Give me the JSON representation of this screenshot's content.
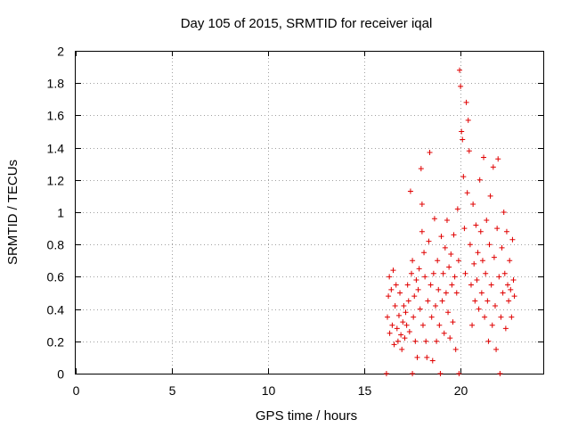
{
  "chart_data": {
    "type": "scatter",
    "title": "Day 105 of 2015, SRMTID for receiver iqal",
    "xlabel": "GPS time / hours",
    "ylabel": "SRMTID / TECUs",
    "xlim": [
      0,
      24.3
    ],
    "ylim": [
      0,
      2
    ],
    "xticks": [
      "0",
      "5",
      "10",
      "15",
      "20"
    ],
    "yticks": [
      "0",
      "0.2",
      "0.4",
      "0.6",
      "0.8",
      "1",
      "1.2",
      "1.4",
      "1.6",
      "1.8",
      "2"
    ],
    "grid": true,
    "marker": "plus",
    "color": "#e00000",
    "series": [
      {
        "name": "SRMTID",
        "points": [
          [
            16.15,
            0.0
          ],
          [
            16.2,
            0.35
          ],
          [
            16.25,
            0.48
          ],
          [
            16.3,
            0.6
          ],
          [
            16.32,
            0.25
          ],
          [
            16.4,
            0.52
          ],
          [
            16.45,
            0.3
          ],
          [
            16.5,
            0.64
          ],
          [
            16.55,
            0.18
          ],
          [
            16.6,
            0.42
          ],
          [
            16.65,
            0.55
          ],
          [
            16.7,
            0.28
          ],
          [
            16.75,
            0.2
          ],
          [
            16.8,
            0.36
          ],
          [
            16.85,
            0.5
          ],
          [
            16.9,
            0.24
          ],
          [
            16.95,
            0.15
          ],
          [
            17.0,
            0.32
          ],
          [
            17.05,
            0.42
          ],
          [
            17.1,
            0.22
          ],
          [
            17.15,
            0.38
          ],
          [
            17.2,
            0.3
          ],
          [
            17.25,
            0.55
          ],
          [
            17.3,
            0.45
          ],
          [
            17.35,
            0.26
          ],
          [
            17.4,
            1.13
          ],
          [
            17.45,
            0.62
          ],
          [
            17.5,
            0.7
          ],
          [
            17.5,
            0.0
          ],
          [
            17.55,
            0.35
          ],
          [
            17.6,
            0.48
          ],
          [
            17.65,
            0.2
          ],
          [
            17.7,
            0.58
          ],
          [
            17.75,
            0.1
          ],
          [
            17.8,
            0.52
          ],
          [
            17.85,
            0.65
          ],
          [
            17.9,
            0.4
          ],
          [
            17.95,
            1.27
          ],
          [
            18.0,
            1.05
          ],
          [
            18.0,
            0.88
          ],
          [
            18.05,
            0.3
          ],
          [
            18.1,
            0.75
          ],
          [
            18.15,
            0.6
          ],
          [
            18.2,
            0.2
          ],
          [
            18.25,
            0.1
          ],
          [
            18.3,
            0.45
          ],
          [
            18.35,
            0.82
          ],
          [
            18.4,
            1.37
          ],
          [
            18.45,
            0.55
          ],
          [
            18.5,
            0.35
          ],
          [
            18.55,
            0.08
          ],
          [
            18.6,
            0.62
          ],
          [
            18.65,
            0.96
          ],
          [
            18.7,
            0.42
          ],
          [
            18.75,
            0.2
          ],
          [
            18.8,
            0.7
          ],
          [
            18.85,
            0.52
          ],
          [
            18.9,
            0.3
          ],
          [
            18.95,
            0.0
          ],
          [
            19.0,
            0.85
          ],
          [
            19.05,
            0.45
          ],
          [
            19.1,
            0.62
          ],
          [
            19.15,
            0.25
          ],
          [
            19.2,
            0.78
          ],
          [
            19.25,
            0.5
          ],
          [
            19.3,
            0.95
          ],
          [
            19.35,
            0.38
          ],
          [
            19.4,
            0.66
          ],
          [
            19.45,
            0.22
          ],
          [
            19.5,
            0.74
          ],
          [
            19.55,
            0.55
          ],
          [
            19.6,
            0.32
          ],
          [
            19.65,
            0.86
          ],
          [
            19.7,
            0.6
          ],
          [
            19.75,
            0.15
          ],
          [
            19.8,
            0.5
          ],
          [
            19.85,
            1.02
          ],
          [
            19.9,
            0.7
          ],
          [
            19.92,
            0.0
          ],
          [
            19.95,
            1.88
          ],
          [
            20.0,
            1.78
          ],
          [
            20.05,
            1.5
          ],
          [
            20.1,
            1.45
          ],
          [
            20.15,
            1.22
          ],
          [
            20.2,
            0.9
          ],
          [
            20.25,
            0.62
          ],
          [
            20.3,
            1.68
          ],
          [
            20.35,
            1.12
          ],
          [
            20.4,
            1.57
          ],
          [
            20.45,
            1.38
          ],
          [
            20.5,
            0.8
          ],
          [
            20.55,
            0.55
          ],
          [
            20.6,
            0.3
          ],
          [
            20.65,
            1.05
          ],
          [
            20.7,
            0.68
          ],
          [
            20.75,
            0.45
          ],
          [
            20.8,
            0.92
          ],
          [
            20.85,
            0.58
          ],
          [
            20.9,
            0.75
          ],
          [
            20.95,
            0.4
          ],
          [
            21.0,
            1.2
          ],
          [
            21.05,
            0.88
          ],
          [
            21.1,
            0.5
          ],
          [
            21.15,
            0.7
          ],
          [
            21.2,
            1.34
          ],
          [
            21.25,
            0.35
          ],
          [
            21.3,
            0.62
          ],
          [
            21.35,
            0.95
          ],
          [
            21.4,
            0.45
          ],
          [
            21.45,
            0.2
          ],
          [
            21.5,
            0.8
          ],
          [
            21.55,
            1.1
          ],
          [
            21.6,
            0.55
          ],
          [
            21.65,
            0.3
          ],
          [
            21.7,
            1.28
          ],
          [
            21.75,
            0.72
          ],
          [
            21.8,
            0.42
          ],
          [
            21.85,
            0.15
          ],
          [
            21.9,
            0.9
          ],
          [
            21.95,
            1.33
          ],
          [
            22.0,
            0.6
          ],
          [
            22.05,
            0.0
          ],
          [
            22.1,
            0.35
          ],
          [
            22.15,
            0.78
          ],
          [
            22.2,
            0.5
          ],
          [
            22.25,
            1.0
          ],
          [
            22.3,
            0.62
          ],
          [
            22.35,
            0.28
          ],
          [
            22.4,
            0.88
          ],
          [
            22.45,
            0.55
          ],
          [
            22.5,
            0.45
          ],
          [
            22.55,
            0.7
          ],
          [
            22.6,
            0.52
          ],
          [
            22.65,
            0.35
          ],
          [
            22.7,
            0.83
          ],
          [
            22.75,
            0.58
          ],
          [
            22.8,
            0.48
          ]
        ]
      }
    ]
  }
}
